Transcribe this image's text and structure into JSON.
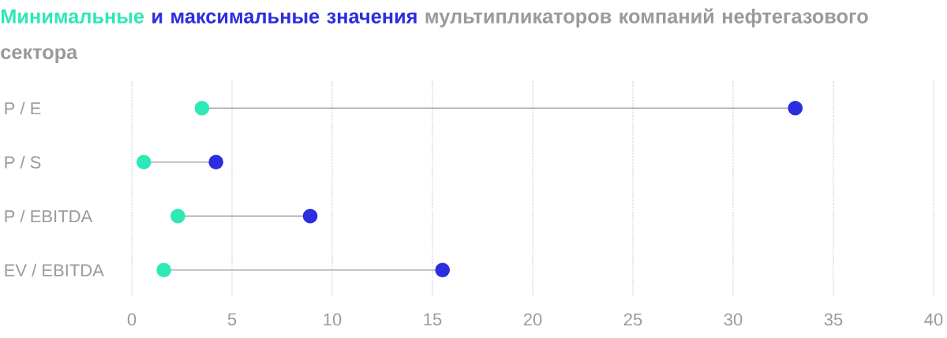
{
  "chart_data": {
    "type": "scatter",
    "orientation": "horizontal",
    "title": "мультипликаторов компаний нефтегазового сектора",
    "categories": [
      "P / E",
      "P / S",
      "P / EBITDA",
      "EV / EBITDA"
    ],
    "series": [
      {
        "name": "Минимальные",
        "color": "#2ee8b6",
        "values": [
          3.5,
          0.6,
          2.3,
          1.6
        ]
      },
      {
        "name": "и максимальные значения",
        "color": "#2d2de0",
        "values": [
          33.1,
          4.2,
          8.9,
          15.5
        ]
      }
    ],
    "xlim": [
      0,
      40
    ],
    "xticks": [
      0,
      5,
      10,
      15,
      20,
      25,
      30,
      35,
      40
    ],
    "grid": "x",
    "marker": "circle"
  }
}
